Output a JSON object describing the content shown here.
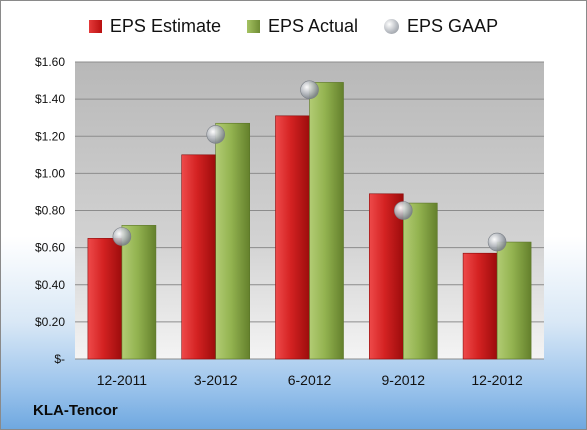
{
  "chart_data": {
    "type": "bar",
    "categories": [
      "12-2011",
      "3-2012",
      "6-2012",
      "9-2012",
      "12-2012"
    ],
    "series": [
      {
        "name": "EPS Estimate",
        "values": [
          0.65,
          1.1,
          1.31,
          0.89,
          0.57
        ],
        "color": "#c81c1c"
      },
      {
        "name": "EPS Actual",
        "values": [
          0.72,
          1.27,
          1.49,
          0.84,
          0.63
        ],
        "color": "#8aaa4a"
      },
      {
        "name": "EPS GAAP",
        "kind": "marker",
        "values": [
          0.66,
          1.21,
          1.45,
          0.8,
          0.63
        ],
        "color": "#a9adb3"
      }
    ],
    "ylim": [
      0,
      1.6
    ],
    "yticks": [
      0,
      0.2,
      0.4,
      0.6,
      0.8,
      1.0,
      1.2,
      1.4,
      1.6
    ],
    "ytick_labels": [
      "$-",
      "$0.20",
      "$0.40",
      "$0.60",
      "$0.80",
      "$1.00",
      "$1.20",
      "$1.40",
      "$1.60"
    ],
    "grid": true,
    "legend_position": "top"
  },
  "company": "KLA-Tencor"
}
